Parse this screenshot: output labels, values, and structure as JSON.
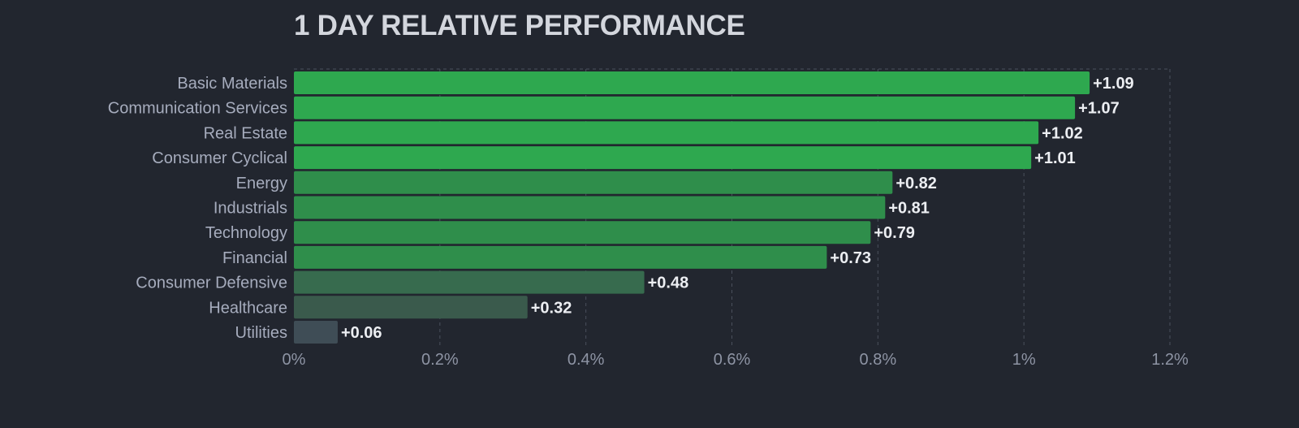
{
  "chart_data": {
    "type": "bar",
    "orientation": "horizontal",
    "title": "1 DAY RELATIVE PERFORMANCE",
    "categories": [
      "Basic Materials",
      "Communication Services",
      "Real Estate",
      "Consumer Cyclical",
      "Energy",
      "Industrials",
      "Technology",
      "Financial",
      "Consumer Defensive",
      "Healthcare",
      "Utilities"
    ],
    "values": [
      1.09,
      1.07,
      1.02,
      1.01,
      0.82,
      0.81,
      0.79,
      0.73,
      0.48,
      0.32,
      0.06
    ],
    "value_labels": [
      "+1.09",
      "+1.07",
      "+1.02",
      "+1.01",
      "+0.82",
      "+0.81",
      "+0.79",
      "+0.73",
      "+0.48",
      "+0.32",
      "+0.06"
    ],
    "bar_colors": [
      "#2ea84f",
      "#2ea84f",
      "#2ea84f",
      "#2ea84f",
      "#2f8e4b",
      "#2f8e4b",
      "#2f8e4b",
      "#2f8e4b",
      "#376b4e",
      "#3a5a4c",
      "#3f4d56"
    ],
    "xlim": [
      0,
      1.2
    ],
    "xticks": [
      0,
      0.2,
      0.4,
      0.6,
      0.8,
      1.0,
      1.2
    ],
    "xtick_labels": [
      "0%",
      "0.2%",
      "0.4%",
      "0.6%",
      "0.8%",
      "1%",
      "1.2%"
    ],
    "grid": true,
    "legend": false,
    "background": "#22262f"
  }
}
